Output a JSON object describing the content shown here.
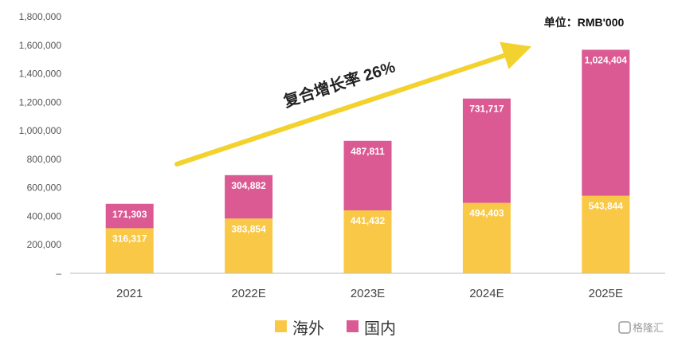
{
  "unit_label": "单位：RMB'000",
  "cagr_label": "复合增长率 26%",
  "watermark": "格隆汇",
  "colors": {
    "overseas": "#F9C846",
    "domestic": "#DB5A93",
    "arrow": "#F2D22E",
    "axis": "#BBBBBB"
  },
  "chart_data": {
    "type": "bar",
    "stacked": true,
    "categories": [
      "2021",
      "2022E",
      "2023E",
      "2024E",
      "2025E"
    ],
    "series": [
      {
        "name": "海外",
        "values": [
          316317,
          383854,
          441432,
          494403,
          543844
        ]
      },
      {
        "name": "国内",
        "values": [
          171303,
          304882,
          487811,
          731717,
          1024404
        ]
      }
    ],
    "value_labels": [
      [
        "316,317",
        "383,854",
        "441,432",
        "494,403",
        "543,844"
      ],
      [
        "171,303",
        "304,882",
        "487,811",
        "731,717",
        "1,024,404"
      ]
    ],
    "ylim": [
      0,
      1800000
    ],
    "yticks": [
      0,
      200000,
      400000,
      600000,
      800000,
      1000000,
      1200000,
      1400000,
      1600000,
      1800000
    ],
    "ytick_labels": [
      "–",
      "200,000",
      "400,000",
      "600,000",
      "800,000",
      "1,000,000",
      "1,200,000",
      "1,400,000",
      "1,600,000",
      "1,800,000"
    ],
    "grid": false,
    "legend_position": "bottom",
    "title": "",
    "xlabel": "",
    "ylabel": ""
  }
}
